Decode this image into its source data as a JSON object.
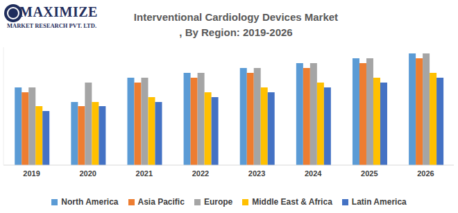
{
  "chart_data": {
    "type": "bar",
    "title": "Interventional Cardiology Devices Market\n, By Region: 2019-2026",
    "annotations": [
      "MAXIMIZE",
      "MARKET RESEARCH PVT. LTD."
    ],
    "categories": [
      "2019",
      "2020",
      "2021",
      "2022",
      "2023",
      "2024",
      "2025",
      "2026"
    ],
    "series": [
      {
        "name": "North America",
        "color": "#5b9bd5",
        "values": [
          112,
          91,
          126,
          133,
          140,
          147,
          154,
          161
        ]
      },
      {
        "name": "Asia Pacific",
        "color": "#ed7d31",
        "values": [
          105,
          85,
          119,
          126,
          133,
          140,
          147,
          154
        ]
      },
      {
        "name": "Europe",
        "color": "#a5a5a5",
        "values": [
          112,
          119,
          126,
          133,
          140,
          147,
          154,
          161
        ]
      },
      {
        "name": "Middle East & Africa",
        "color": "#ffc000",
        "values": [
          85,
          91,
          98,
          105,
          112,
          119,
          126,
          133
        ]
      },
      {
        "name": "Latin America",
        "color": "#4472c4",
        "values": [
          78,
          85,
          91,
          98,
          105,
          112,
          119,
          126
        ]
      }
    ],
    "ylim": [
      0,
      170
    ],
    "grid": false,
    "legend": "bottom",
    "tick_labels": "x"
  }
}
